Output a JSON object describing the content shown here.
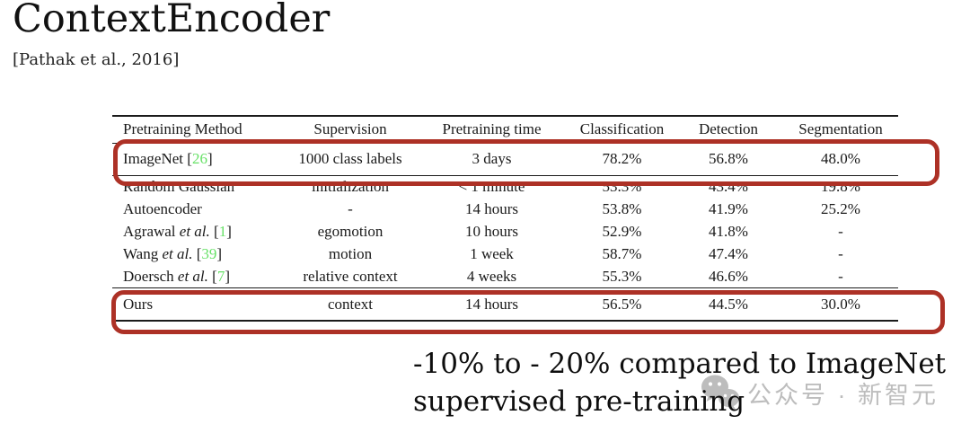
{
  "slide": {
    "title": "ContextEncoder",
    "subtitle": "[Pathak et al., 2016]",
    "caption_line1": "-10% to - 20% compared to ImageNet",
    "caption_line2": "supervised pre-training"
  },
  "table": {
    "headers": [
      "Pretraining Method",
      "Supervision",
      "Pretraining time",
      "Classification",
      "Detection",
      "Segmentation"
    ],
    "rows": [
      {
        "method": "ImageNet",
        "etal": false,
        "cite": "26",
        "supervision": "1000 class labels",
        "time": "3 days",
        "classification": "78.2%",
        "detection": "56.8%",
        "segmentation": "48.0%",
        "group": "imagenet",
        "highlighted": true
      },
      {
        "method": "Random Gaussian",
        "etal": false,
        "cite": null,
        "supervision": "initialization",
        "time": "< 1 minute",
        "classification": "53.3%",
        "detection": "43.4%",
        "segmentation": "19.8%",
        "group": "mid",
        "highlighted": false
      },
      {
        "method": "Autoencoder",
        "etal": false,
        "cite": null,
        "supervision": "-",
        "time": "14 hours",
        "classification": "53.8%",
        "detection": "41.9%",
        "segmentation": "25.2%",
        "group": "mid",
        "highlighted": false
      },
      {
        "method": "Agrawal",
        "etal": true,
        "cite": "1",
        "supervision": "egomotion",
        "time": "10 hours",
        "classification": "52.9%",
        "detection": "41.8%",
        "segmentation": "-",
        "group": "mid",
        "highlighted": false
      },
      {
        "method": "Wang",
        "etal": true,
        "cite": "39",
        "supervision": "motion",
        "time": "1 week",
        "classification": "58.7%",
        "detection": "47.4%",
        "segmentation": "-",
        "group": "mid",
        "highlighted": false
      },
      {
        "method": "Doersch",
        "etal": true,
        "cite": "7",
        "supervision": "relative context",
        "time": "4 weeks",
        "classification": "55.3%",
        "detection": "46.6%",
        "segmentation": "-",
        "group": "mid",
        "highlighted": false
      },
      {
        "method": "Ours",
        "etal": false,
        "cite": null,
        "supervision": "context",
        "time": "14 hours",
        "classification": "56.5%",
        "detection": "44.5%",
        "segmentation": "30.0%",
        "group": "ours",
        "highlighted": true
      }
    ]
  },
  "watermark": {
    "icon": "wechat-icon",
    "text": "公众号 · 新智元"
  },
  "colors": {
    "citation_green": "#67E167",
    "highlight_red": "#AD3126",
    "watermark_gray": "#BDBDBD",
    "text_black": "#1A1A1A"
  }
}
